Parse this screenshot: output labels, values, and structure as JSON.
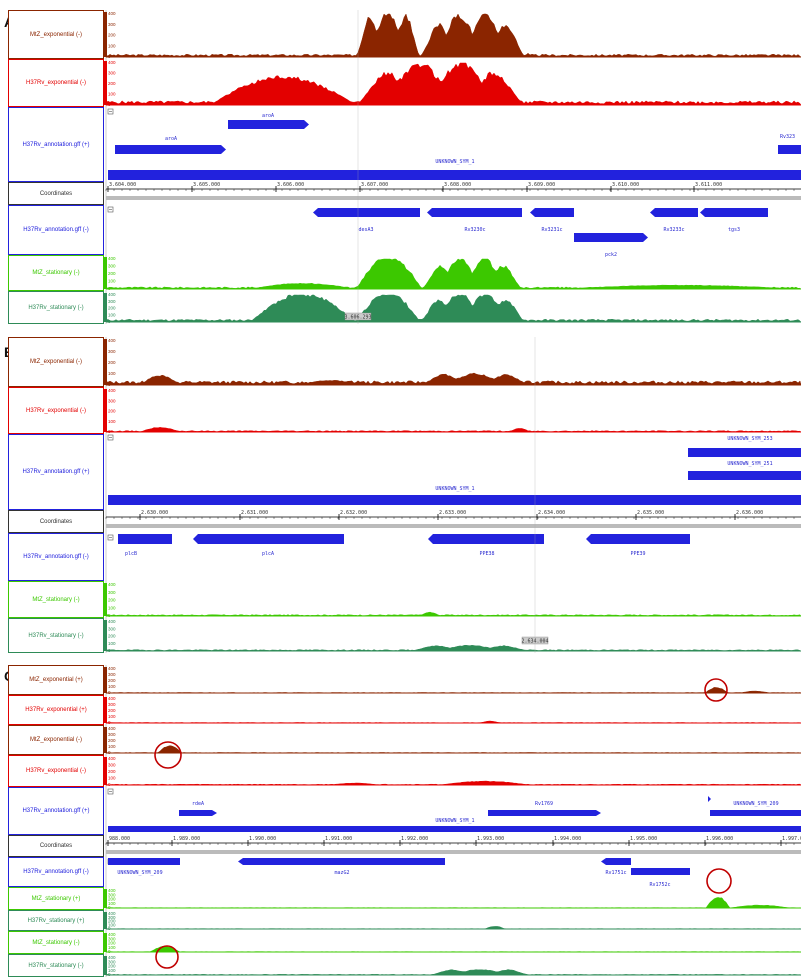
{
  "panels": [
    {
      "letter": "A",
      "coord_ticks": [
        "3.604.000",
        "3.605.000",
        "3.606.000",
        "3.607.000",
        "3.608.000",
        "3.609.000",
        "3.610.000",
        "3.611.000"
      ],
      "annotation_plus": [
        "aroA",
        "aroA",
        "Rv323",
        "UNKNOWN_SYM_1"
      ],
      "annotation_minus": [
        "desA3",
        "Rv3230c",
        "Rv3231c",
        "pck2",
        "Rv3233c",
        "tgs3"
      ],
      "cursor_label": "3.606.293"
    },
    {
      "letter": "B",
      "coord_ticks": [
        "2.630.000",
        "2.631.000",
        "2.632.000",
        "2.633.000",
        "2.634.000",
        "2.635.000",
        "2.636.000"
      ],
      "annotation_plus": [
        "UNKNOWN_SYM_253",
        "UNKNOWN_SYM_251",
        "UNKNOWN_SYM_1"
      ],
      "annotation_minus": [
        "plcB",
        "plcA",
        "PPE38",
        "PPE39"
      ],
      "cursor_label": "2.634.004"
    },
    {
      "letter": "C",
      "coord_ticks": [
        "988.000",
        "1.989.000",
        "1.990.000",
        "1.991.000",
        "1.992.000",
        "1.993.000",
        "1.994.000",
        "1.995.000",
        "1.996.000",
        "1.997.00"
      ],
      "annotation_plus": [
        "rdeA",
        "Rv1769",
        "UNKNOWN_SYM_1",
        "UNKNOWN_SYM_209"
      ],
      "annotation_minus": [
        "UNKNOWN_SYM_209",
        "mazG2",
        "Rv1751c",
        "Rv1752c"
      ]
    }
  ],
  "track_labels": {
    "mtz_exp_plus": "MtZ_exponential (+)",
    "h37_exp_plus": "H37Rv_exponential (+)",
    "mtz_exp_minus": "MtZ_exponential (-)",
    "h37_exp_minus": "H37Rv_exponential (-)",
    "ann_plus": "H37Rv_annotation.gff (+)",
    "coords": "Coordinates",
    "ann_minus": "H37Rv_annotation.gff (-)",
    "mtz_stat_plus": "MtZ_stationary (+)",
    "h37_stat_plus": "H37Rv_stationary (+)",
    "mtz_stat_minus": "MtZ_stationary (-)",
    "h37_stat_minus": "H37Rv_stationary (-)"
  },
  "scale_ticks": [
    "400",
    "300",
    "200",
    "100",
    "0"
  ],
  "colors": {
    "mtz_exp": "#8b2500",
    "h37_exp": "#e30000",
    "ann": "#2222dd",
    "mtz_stat": "#3cc800",
    "h37_stat": "#2e8b57",
    "coord": "#333333"
  }
}
